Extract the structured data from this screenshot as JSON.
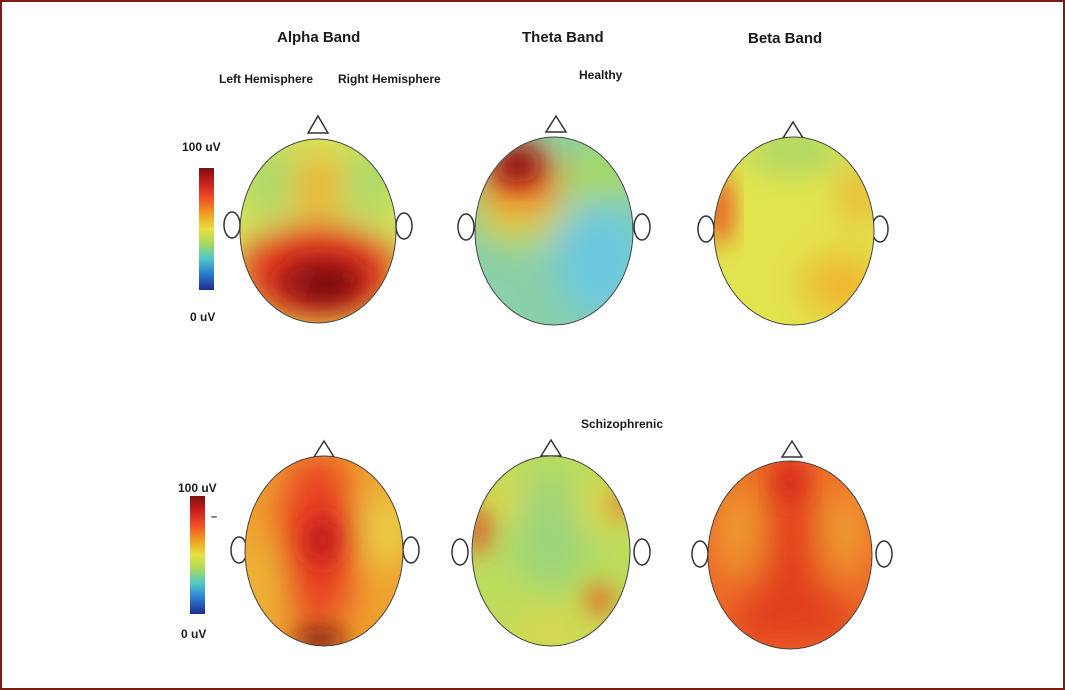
{
  "bands": {
    "alpha": "Alpha Band",
    "theta": "Theta Band",
    "beta": "Beta Band"
  },
  "hemispheres": {
    "left": "Left Hemisphere",
    "right": "Right Hemisphere"
  },
  "conditions": {
    "healthy": "Healthy",
    "schizophrenic": "Schizophrenic"
  },
  "colorbar": {
    "max_label": "100 uV",
    "min_label": "0 uV",
    "tick_mark": "–",
    "colors": [
      "#7a0f0f",
      "#c81e1e",
      "#f05028",
      "#f0a020",
      "#e8e040",
      "#a8d860",
      "#50c8c8",
      "#2a7ad0",
      "#1e2a90"
    ]
  },
  "colors": {
    "frame": "#7a1e14",
    "text": "#1a1a1a"
  }
}
